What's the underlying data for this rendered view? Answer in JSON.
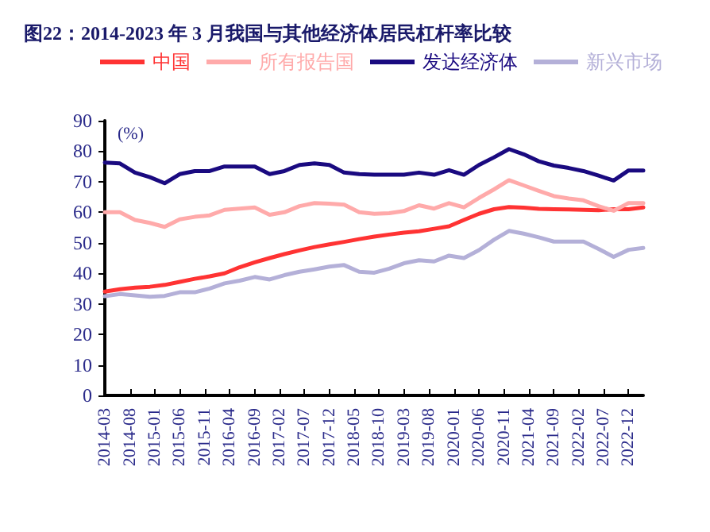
{
  "chart_data": {
    "type": "line",
    "title": "图22：2014-2023 年 3 月我国与其他经济体居民杠杆率比较",
    "ylabel": "(%)",
    "x": [
      "2014-03",
      "2014-06",
      "2014-09",
      "2014-12",
      "2015-03",
      "2015-06",
      "2015-09",
      "2015-12",
      "2016-03",
      "2016-06",
      "2016-09",
      "2016-12",
      "2017-03",
      "2017-06",
      "2017-09",
      "2017-12",
      "2018-03",
      "2018-06",
      "2018-09",
      "2018-12",
      "2019-03",
      "2019-06",
      "2019-09",
      "2019-12",
      "2020-03",
      "2020-06",
      "2020-09",
      "2020-12",
      "2021-03",
      "2021-06",
      "2021-09",
      "2021-12",
      "2022-03",
      "2022-06",
      "2022-09",
      "2022-12",
      "2023-03"
    ],
    "series": [
      {
        "name": "中国",
        "color": "#ff3333",
        "values": [
          34,
          34.8,
          35.3,
          35.6,
          36.2,
          37.2,
          38.2,
          39,
          40,
          42,
          43.6,
          45,
          46.3,
          47.5,
          48.6,
          49.5,
          50.3,
          51.2,
          52,
          52.7,
          53.3,
          53.8,
          54.6,
          55.4,
          57.5,
          59.5,
          61,
          61.7,
          61.5,
          61.1,
          61,
          60.9,
          60.8,
          60.7,
          61,
          61,
          61.6
        ]
      },
      {
        "name": "所有报告国",
        "color": "#ffaaaa",
        "values": [
          60,
          60,
          57.5,
          56.5,
          55.2,
          57.7,
          58.5,
          59,
          60.8,
          61.2,
          61.6,
          59.2,
          60,
          62,
          63,
          62.8,
          62.5,
          60,
          59.5,
          59.7,
          60.4,
          62.3,
          61.2,
          63,
          61.6,
          64.7,
          67.5,
          70.5,
          68.8,
          67,
          65.3,
          64.5,
          63.9,
          62,
          60.5,
          63,
          63
        ]
      },
      {
        "name": "发达经济体",
        "color": "#1a0a80",
        "values": [
          76.3,
          76,
          73,
          71.5,
          69.5,
          72.5,
          73.5,
          73.5,
          75,
          75,
          75,
          72.5,
          73.5,
          75.5,
          76,
          75.5,
          73,
          72.5,
          72.3,
          72.3,
          72.3,
          73,
          72.3,
          73.8,
          72.3,
          75.5,
          78,
          80.7,
          79,
          76.7,
          75.3,
          74.5,
          73.5,
          72,
          70.4,
          73.7,
          73.7
        ]
      },
      {
        "name": "新兴市场",
        "color": "#b4b0d8",
        "values": [
          32.5,
          33.2,
          32.8,
          32.3,
          32.6,
          33.8,
          33.8,
          35,
          36.7,
          37.6,
          38.8,
          38,
          39.4,
          40.5,
          41.3,
          42.2,
          42.7,
          40.5,
          40.2,
          41.5,
          43.3,
          44.3,
          43.9,
          45.8,
          45,
          47.6,
          51,
          53.9,
          53,
          51.8,
          50.4,
          50.4,
          50.4,
          48,
          45.4,
          47.7,
          48.3
        ]
      }
    ],
    "xlim": [
      "2014-03",
      "2023-03"
    ],
    "xticks": [
      "2014-03",
      "2014-08",
      "2015-01",
      "2015-06",
      "2015-11",
      "2016-04",
      "2016-09",
      "2017-02",
      "2017-07",
      "2017-12",
      "2018-05",
      "2018-10",
      "2019-03",
      "2019-08",
      "2020-01",
      "2020-06",
      "2020-11",
      "2021-04",
      "2021-09",
      "2022-02",
      "2022-07",
      "2022-12"
    ],
    "ylim": [
      0,
      90
    ],
    "yticks": [
      0,
      10,
      20,
      30,
      40,
      50,
      60,
      70,
      80,
      90
    ],
    "grid": false,
    "legend": "top",
    "marker": "none",
    "line_style": "solid"
  }
}
